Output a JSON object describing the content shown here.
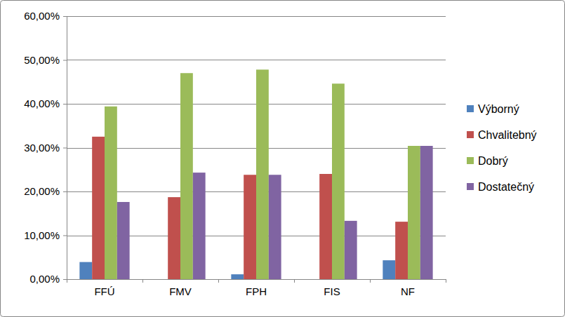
{
  "chart_data": {
    "type": "bar",
    "categories": [
      "FFÚ",
      "FMV",
      "FPH",
      "FIS",
      "NF"
    ],
    "series": [
      {
        "name": "Výborný",
        "color": "#4f81bd",
        "values": [
          3.9,
          0,
          1.1,
          0,
          4.3
        ]
      },
      {
        "name": "Chvalitebný",
        "color": "#c0504d",
        "values": [
          32.5,
          18.7,
          23.8,
          24.0,
          13.1
        ]
      },
      {
        "name": "Dobrý",
        "color": "#9bbb59",
        "values": [
          39.4,
          47.0,
          47.8,
          44.6,
          30.4
        ]
      },
      {
        "name": "Dostatečný",
        "color": "#8064a2",
        "values": [
          17.6,
          24.3,
          23.8,
          13.3,
          30.4
        ]
      }
    ],
    "ylim": [
      0,
      60
    ],
    "yticks": [
      {
        "value": 0,
        "label": "0,00%"
      },
      {
        "value": 10,
        "label": "10,00%"
      },
      {
        "value": 20,
        "label": "20,00%"
      },
      {
        "value": 30,
        "label": "30,00%"
      },
      {
        "value": 40,
        "label": "40,00%"
      },
      {
        "value": 50,
        "label": "50,00%"
      },
      {
        "value": 60,
        "label": "60,00%"
      }
    ],
    "grid": true,
    "legend": "right"
  }
}
